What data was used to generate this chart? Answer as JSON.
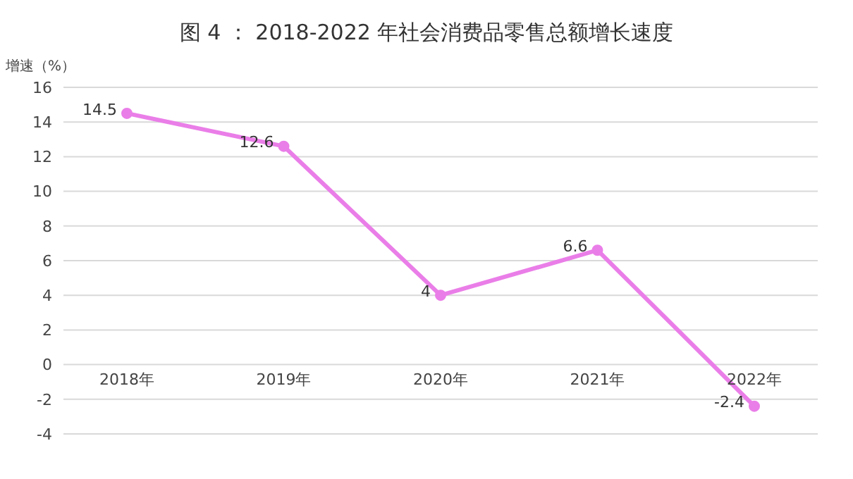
{
  "chart_data": {
    "type": "line",
    "title": "图 4 ： 2018-2022 年社会消费品零售总额增长速度",
    "ylabel": "增速（%）",
    "categories": [
      "2018年",
      "2019年",
      "2020年",
      "2021年",
      "2022年"
    ],
    "series": [
      {
        "color": "#ea7ee8",
        "values": [
          14.5,
          12.6,
          4,
          6.6,
          -2.4
        ]
      }
    ],
    "ylim": [
      -4,
      16
    ],
    "yticks": [
      -4,
      -2,
      0,
      2,
      4,
      6,
      8,
      10,
      12,
      14,
      16
    ],
    "grid": "y",
    "marker": "circle",
    "line_style": "solid",
    "data_labels": true,
    "legend": false
  }
}
